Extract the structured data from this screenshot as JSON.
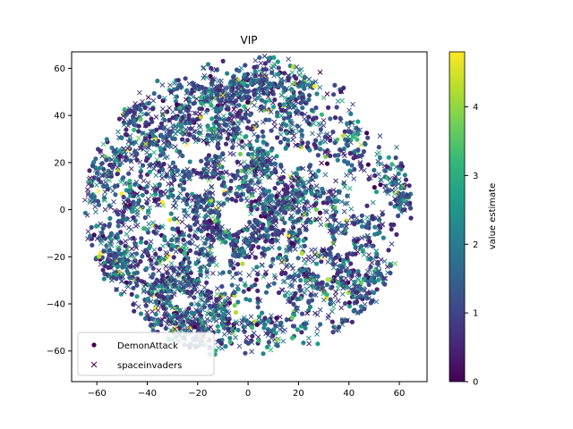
{
  "chart_data": {
    "type": "scatter",
    "title": "VIP",
    "xlabel": "",
    "ylabel": "",
    "xlim": [
      -70,
      71
    ],
    "ylim": [
      -73,
      67
    ],
    "x_ticks": [
      -60,
      -40,
      -20,
      0,
      20,
      40,
      60
    ],
    "y_ticks": [
      -60,
      -40,
      -20,
      0,
      20,
      40,
      60
    ],
    "grid": false,
    "legend_position": "lower-left",
    "colorbar": {
      "label": "value estimate",
      "min": 0,
      "max": 4.8,
      "ticks": [
        0,
        1,
        2,
        3,
        4
      ],
      "colormap": "viridis"
    },
    "series": [
      {
        "name": "DemonAttack",
        "marker": "circle",
        "point_count": 2500
      },
      {
        "name": "spaceinvaders",
        "marker": "x",
        "point_count": 1800
      }
    ]
  },
  "colors": {
    "viridis": [
      "#440154",
      "#482878",
      "#3e4989",
      "#31688e",
      "#26828e",
      "#1f9e89",
      "#35b779",
      "#6ece58",
      "#b5de2b",
      "#fde725"
    ]
  }
}
